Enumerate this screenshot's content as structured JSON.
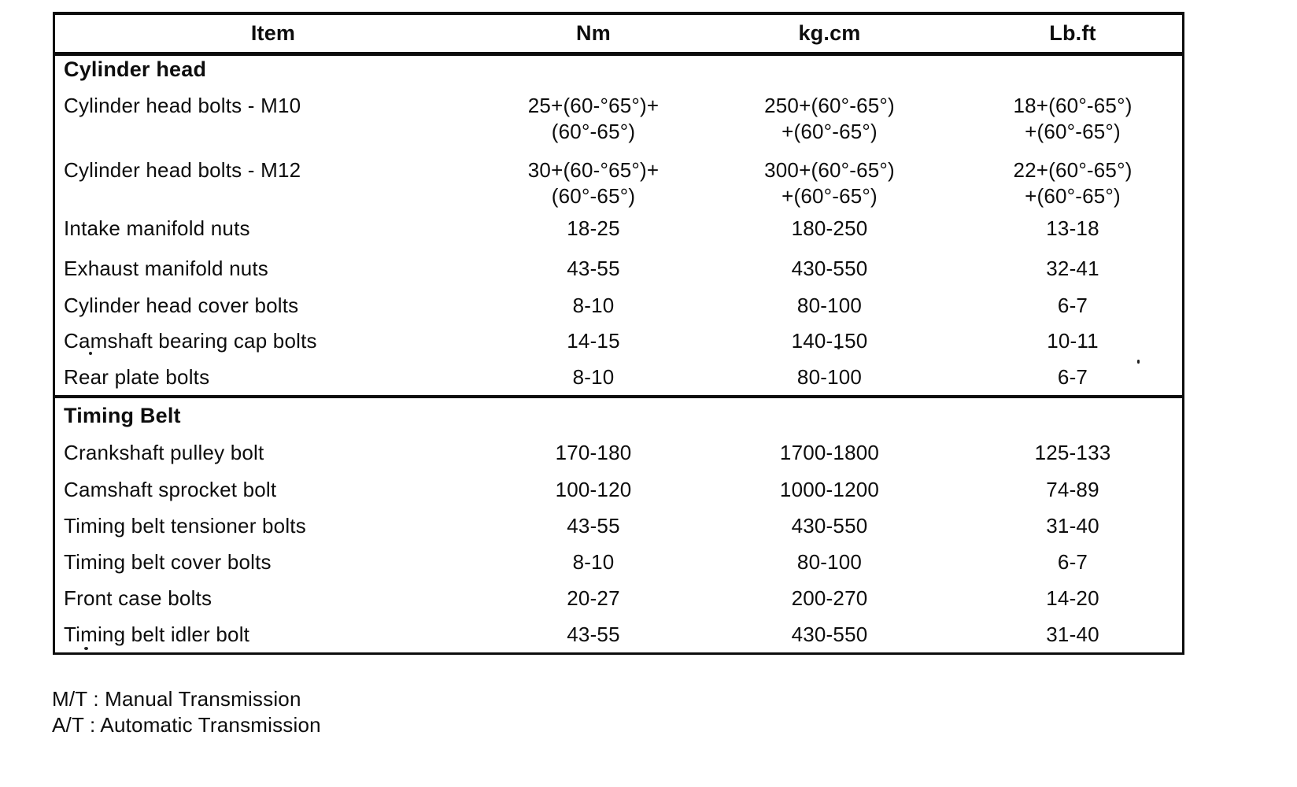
{
  "page": {
    "background": "#ffffff",
    "ink": "#0d0d0d"
  },
  "table": {
    "headers": [
      "Item",
      "Nm",
      "kg.cm",
      "Lb.ft"
    ],
    "sections": [
      {
        "title": "Cylinder head",
        "rows": [
          {
            "item": "Cylinder head bolts - M10",
            "nm": [
              "25+(60-°65°)+(60°-65°)"
            ],
            "kgcm": [
              "250+(60°-65°)",
              "+(60°-65°)"
            ],
            "lbft": [
              "18+(60°-65°)",
              "+(60°-65°)"
            ]
          },
          {
            "item": "Cylinder head bolts - M12",
            "nm": [
              "30+(60-°65°)+(60°-65°)"
            ],
            "kgcm": [
              "300+(60°-65°)",
              "+(60°-65°)"
            ],
            "lbft": [
              "22+(60°-65°)",
              "+(60°-65°)"
            ]
          },
          {
            "item": "Intake manifold nuts",
            "nm": [
              "18-25"
            ],
            "kgcm": [
              "180-250"
            ],
            "lbft": [
              "13-18"
            ]
          },
          {
            "item": "Exhaust manifold nuts",
            "nm": [
              "43-55"
            ],
            "kgcm": [
              "430-550"
            ],
            "lbft": [
              "32-41"
            ]
          },
          {
            "item": "Cylinder head cover bolts",
            "nm": [
              "8-10"
            ],
            "kgcm": [
              "80-100"
            ],
            "lbft": [
              "6-7"
            ]
          },
          {
            "item": "Camshaft bearing cap bolts",
            "nm": [
              "14-15"
            ],
            "kgcm": [
              "140-150"
            ],
            "lbft": [
              "10-11"
            ]
          },
          {
            "item": "Rear plate bolts",
            "nm": [
              "8-10"
            ],
            "kgcm": [
              "80-100"
            ],
            "lbft": [
              "6-7"
            ]
          }
        ]
      },
      {
        "title": "Timing Belt",
        "rows": [
          {
            "item": "Crankshaft pulley bolt",
            "nm": [
              "170-180"
            ],
            "kgcm": [
              "1700-1800"
            ],
            "lbft": [
              "125-133"
            ]
          },
          {
            "item": "Camshaft sprocket bolt",
            "nm": [
              "100-120"
            ],
            "kgcm": [
              "1000-1200"
            ],
            "lbft": [
              "74-89"
            ]
          },
          {
            "item": "Timing belt tensioner bolts",
            "nm": [
              "43-55"
            ],
            "kgcm": [
              "430-550"
            ],
            "lbft": [
              "31-40"
            ]
          },
          {
            "item": "Timing belt cover bolts",
            "nm": [
              "8-10"
            ],
            "kgcm": [
              "80-100"
            ],
            "lbft": [
              "6-7"
            ]
          },
          {
            "item": "Front case bolts",
            "nm": [
              "20-27"
            ],
            "kgcm": [
              "200-270"
            ],
            "lbft": [
              "14-20"
            ]
          },
          {
            "item": "Timing belt idler bolt",
            "nm": [
              "43-55"
            ],
            "kgcm": [
              "430-550"
            ],
            "lbft": [
              "31-40"
            ]
          }
        ]
      }
    ]
  },
  "footnotes": [
    "M/T : Manual Transmission",
    "A/T : Automatic Transmission"
  ]
}
